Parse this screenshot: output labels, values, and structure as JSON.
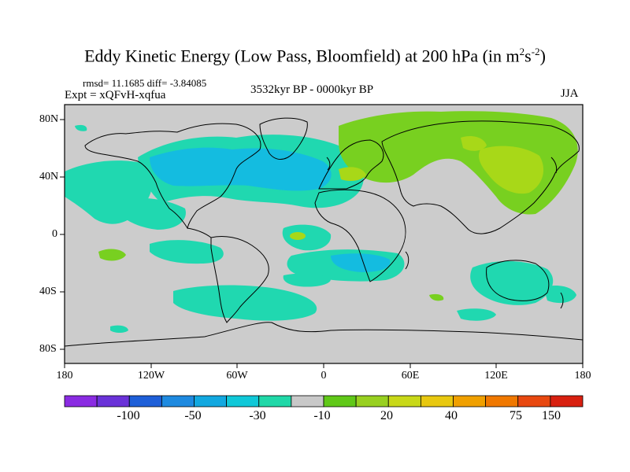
{
  "title": "Eddy Kinetic Energy (Low Pass, Bloomfield) at 200 hPa (in m",
  "title_unit_sup1": "2",
  "title_unit_mid": "s",
  "title_unit_sup2": "-2",
  "title_end": ")",
  "stats": "rmsd= 11.1685 diff= -3.84085",
  "experiment": "Expt = xQFvH-xqfua",
  "period": "3532kyr BP - 0000kyr BP",
  "season": "JJA",
  "map": {
    "lon_ticks": [
      "180",
      "120W",
      "60W",
      "0",
      "60E",
      "120E",
      "180"
    ],
    "lat_ticks": [
      "80N",
      "40N",
      "0",
      "40S",
      "80S"
    ],
    "background_color": "#cccccc",
    "coastline_color": "#000000"
  },
  "colorbar": {
    "colors": [
      "#8a2be2",
      "#6a32d8",
      "#1e5fd8",
      "#1e8ae0",
      "#12a8e0",
      "#10c8d8",
      "#20d8a8",
      "#c8c8c8",
      "#60c818",
      "#98d020",
      "#c8d818",
      "#e8c810",
      "#f0a000",
      "#f07800",
      "#e84810",
      "#d82010"
    ],
    "labels": [
      "-100",
      "-50",
      "-30",
      "-10",
      "20",
      "40",
      "75",
      "150"
    ]
  },
  "legend_colors": {
    "cyan": "#14bce0",
    "teal": "#20d8b0",
    "green": "#78d020",
    "yellow_green": "#a8d818"
  }
}
